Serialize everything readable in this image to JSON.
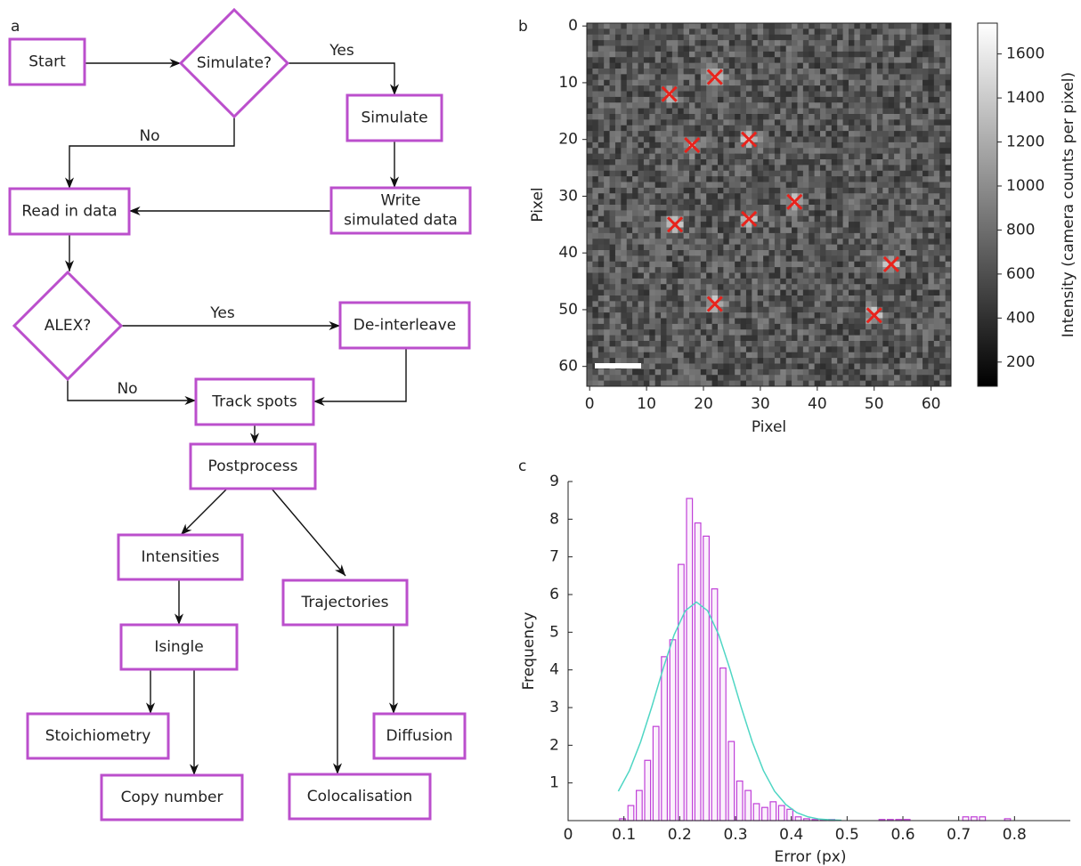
{
  "panel_labels": [
    "a",
    "b",
    "c"
  ],
  "flowchart": {
    "nodes": [
      {
        "lines": [
          "Start"
        ]
      },
      {
        "lines": [
          "Simulate?"
        ]
      },
      {
        "lines": [
          "Simulate"
        ]
      },
      {
        "lines": [
          "Write",
          "simulated data"
        ]
      },
      {
        "lines": [
          "Read in data"
        ]
      },
      {
        "lines": [
          "ALEX?"
        ]
      },
      {
        "lines": [
          "De-interleave"
        ]
      },
      {
        "lines": [
          "Track spots"
        ]
      },
      {
        "lines": [
          "Postprocess"
        ]
      },
      {
        "lines": [
          "Intensities"
        ]
      },
      {
        "lines": [
          "Trajectories"
        ]
      },
      {
        "lines": [
          "Isingle"
        ]
      },
      {
        "lines": [
          "Stoichiometry"
        ]
      },
      {
        "lines": [
          "Copy number"
        ]
      },
      {
        "lines": [
          "Colocalisation"
        ]
      },
      {
        "lines": [
          "Diffusion"
        ]
      }
    ],
    "edge_labels": [
      "Yes",
      "No",
      "Yes",
      "No"
    ]
  },
  "chart_data": [
    {
      "type": "heatmap",
      "xlabel": "Pixel",
      "ylabel": "Pixel",
      "colorbar_label": "Intensity (camera counts per pixel)",
      "xlim": [
        -0.5,
        63.5
      ],
      "ylim": [
        63.5,
        -0.5
      ],
      "xticks": [
        0,
        10,
        20,
        30,
        40,
        50,
        60
      ],
      "yticks": [
        0,
        10,
        20,
        30,
        40,
        50,
        60
      ],
      "clim": [
        90,
        1740
      ],
      "cticks": [
        200,
        400,
        600,
        800,
        1000,
        1200,
        1400,
        1600
      ],
      "markers": {
        "color": "#e8231c",
        "x": [
          14,
          22,
          18,
          28,
          36,
          15,
          28,
          53,
          22,
          50
        ],
        "y": [
          12,
          9,
          21,
          20,
          31,
          35,
          34,
          42,
          49,
          51
        ]
      }
    },
    {
      "type": "histogram",
      "xlabel": "Error (px)",
      "ylabel": "Frequency",
      "color": "#c040d8",
      "xlim": [
        0,
        0.9
      ],
      "ylim": [
        0,
        9
      ],
      "xticks": [
        0,
        0.1,
        0.2,
        0.3,
        0.4,
        0.5,
        0.6,
        0.7,
        0.8
      ],
      "yticks": [
        1,
        2,
        3,
        4,
        5,
        6,
        7,
        8,
        9
      ],
      "bins": [
        0.09,
        0.105,
        0.12,
        0.135,
        0.15,
        0.165,
        0.18,
        0.195,
        0.21,
        0.225,
        0.24,
        0.255,
        0.27,
        0.285,
        0.3,
        0.315,
        0.33,
        0.345,
        0.36,
        0.375,
        0.39,
        0.405,
        0.42,
        0.435,
        0.45,
        0.465,
        0.48,
        0.495,
        0.51,
        0.525,
        0.54,
        0.555,
        0.57,
        0.585,
        0.6,
        0.615,
        0.63,
        0.645,
        0.66,
        0.675,
        0.69,
        0.705,
        0.72,
        0.735,
        0.75,
        0.765,
        0.78,
        0.795,
        0.81
      ],
      "counts": [
        0.05,
        0.4,
        0.8,
        1.6,
        2.5,
        4.35,
        4.8,
        6.8,
        8.55,
        7.9,
        7.55,
        6.15,
        4.05,
        2.1,
        1.05,
        0.8,
        0.45,
        0.35,
        0.5,
        0.4,
        0.3,
        0.1,
        0.05,
        0.03,
        0.03,
        0.03,
        0,
        0,
        0,
        0,
        0,
        0.03,
        0.03,
        0.03,
        0.03,
        0,
        0,
        0,
        0,
        0,
        0,
        0.1,
        0.1,
        0.1,
        0,
        0,
        0.05,
        0
      ],
      "series": [
        {
          "color": "#4fd6c4",
          "x": [
            0.09,
            0.11,
            0.13,
            0.15,
            0.17,
            0.19,
            0.21,
            0.23,
            0.25,
            0.27,
            0.29,
            0.31,
            0.33,
            0.35,
            0.37,
            0.39,
            0.41,
            0.43,
            0.45,
            0.47,
            0.49
          ],
          "values": [
            0.78,
            1.33,
            2.09,
            3.02,
            4.02,
            4.93,
            5.57,
            5.8,
            5.57,
            4.93,
            4.02,
            3.02,
            2.09,
            1.33,
            0.78,
            0.43,
            0.21,
            0.1,
            0.04,
            0.02,
            0.01
          ]
        }
      ]
    }
  ]
}
